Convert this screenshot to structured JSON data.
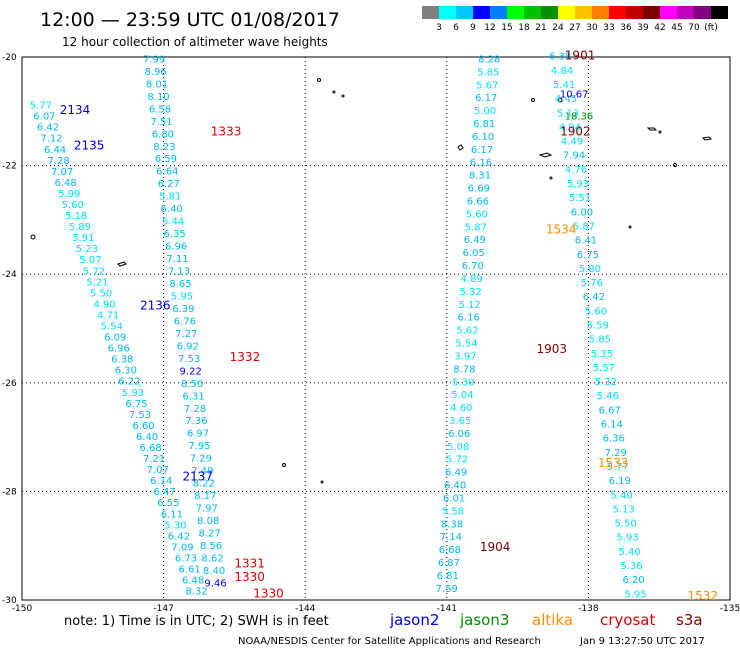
{
  "header": {
    "title": "12:00 — 23:59 UTC 01/08/2017",
    "subtitle": "12 hour collection of altimeter wave heights"
  },
  "colorbar": {
    "colors": [
      "#808080",
      "#00ffff",
      "#00c8ff",
      "#0000ff",
      "#0080ff",
      "#00ff00",
      "#00c000",
      "#009000",
      "#ffff00",
      "#ffc000",
      "#ff8000",
      "#ff0000",
      "#c00000",
      "#800000",
      "#ff00ff",
      "#c000c0",
      "#800080",
      "#000000"
    ],
    "labels": [
      "3",
      "6",
      "9",
      "12",
      "15",
      "18",
      "21",
      "24",
      "27",
      "30",
      "33",
      "36",
      "39",
      "42",
      "45",
      "70",
      "(ft)"
    ]
  },
  "footer": {
    "note": "note: 1) Time is in UTC; 2) SWH is in feet",
    "legend": [
      {
        "name": "jason2",
        "color": "#0000dd"
      },
      {
        "name": "jason3",
        "color": "#009000"
      },
      {
        "name": "altika",
        "color": "#ff8c00"
      },
      {
        "name": "cryosat",
        "color": "#dd0000"
      },
      {
        "name": "s3a",
        "color": "#800000"
      }
    ],
    "credit": "NOAA/NESDIS Center for Satellite Applications and Research",
    "timestamp": "Jan  9 13:27:50 UTC 2017"
  },
  "chart_data": {
    "type": "scatter",
    "title": "12:00 — 23:59 UTC 01/08/2017",
    "subtitle": "12 hour collection of altimeter wave heights",
    "xlim": [
      -150,
      -135
    ],
    "ylim": [
      -30,
      -20
    ],
    "x_ticks": [
      "-150",
      "-147",
      "-144",
      "-141",
      "-138",
      "-135"
    ],
    "y_ticks": [
      "-20",
      "-22",
      "-24",
      "-26",
      "-28",
      "-30"
    ],
    "grid": "dotted",
    "legend": "bottom",
    "pass_labels": [
      {
        "text": "1901",
        "lon": -138.5,
        "lat": -20.05,
        "color": "#800000"
      },
      {
        "text": "1333",
        "lon": -146.0,
        "lat": -21.45,
        "color": "#dd0000"
      },
      {
        "text": "1902",
        "lon": -138.6,
        "lat": -21.45,
        "color": "#800000"
      },
      {
        "text": "2134",
        "lon": -149.2,
        "lat": -21.05,
        "color": "#0000dd"
      },
      {
        "text": "2135",
        "lon": -148.9,
        "lat": -21.7,
        "color": "#0000dd"
      },
      {
        "text": "1534",
        "lon": -138.9,
        "lat": -23.25,
        "color": "#ff8c00"
      },
      {
        "text": "2136",
        "lon": -147.5,
        "lat": -24.65,
        "color": "#0000dd"
      },
      {
        "text": "1903",
        "lon": -139.1,
        "lat": -25.45,
        "color": "#800000"
      },
      {
        "text": "1332",
        "lon": -145.6,
        "lat": -25.6,
        "color": "#dd0000"
      },
      {
        "text": "1533",
        "lon": -137.8,
        "lat": -27.55,
        "color": "#ff8c00"
      },
      {
        "text": "2137",
        "lon": -146.6,
        "lat": -27.8,
        "color": "#0000dd"
      },
      {
        "text": "1904",
        "lon": -140.3,
        "lat": -29.1,
        "color": "#800000"
      },
      {
        "text": "1331",
        "lon": -145.5,
        "lat": -29.4,
        "color": "#dd0000"
      },
      {
        "text": "1330",
        "lon": -145.5,
        "lat": -29.65,
        "color": "#dd0000"
      },
      {
        "text": "1330",
        "lon": -145.1,
        "lat": -29.95,
        "color": "#dd0000"
      },
      {
        "text": "1532",
        "lon": -135.9,
        "lat": -30.0,
        "color": "#ff8c00"
      }
    ],
    "series": [
      {
        "satellite": "jason2",
        "pass": "2134-2137",
        "start": [
          -149.6,
          -20.95
        ],
        "end": [
          -146.3,
          -29.9
        ],
        "values": [
          "5.77",
          "6.07",
          "6.42",
          "7.12",
          "6.44",
          "7.28",
          "7.07",
          "6.48",
          "5.99",
          "5.60",
          "5.18",
          "5.89",
          "5.91",
          "5.23",
          "5.07",
          "5.72",
          "5.21",
          "5.50",
          "4.90",
          "4.71",
          "5.54",
          "6.09",
          "6.96",
          "6.38",
          "6.30",
          "6.22",
          "5.93",
          "6.75",
          "7.53",
          "6.60",
          "6.40",
          "6.68",
          "7.21",
          "7.07",
          "6.14",
          "6.47",
          "6.55",
          "6.11",
          "5.30",
          "6.42",
          "7.09",
          "6.73",
          "6.61",
          "6.48",
          "8.32"
        ]
      },
      {
        "satellite": "cryosat",
        "pass": "1330-1333",
        "start": [
          -147.2,
          -20.1
        ],
        "end": [
          -145.9,
          -29.75
        ],
        "values": [
          "7.99",
          "8.96",
          "8.01",
          "8.10",
          "6.58",
          "7.51",
          "6.80",
          "8.23",
          "6.59",
          "6.64",
          "6.27",
          "5.81",
          "6.40",
          "5.44",
          "6.35",
          "6.96",
          "7.11",
          "7.13",
          "8.65",
          "5.95",
          "6.39",
          "6.76",
          "7.27",
          "6.92",
          "7.53",
          "9.22",
          "8.50",
          "6.31",
          "7.28",
          "7.36",
          "6.97",
          "7.95",
          "7.29",
          "7.49",
          "8.22",
          "8.17",
          "7.97",
          "8.08",
          "8.27",
          "8.56",
          "8.62",
          "8.40",
          "9.46"
        ]
      },
      {
        "satellite": "s3a",
        "pass": "1901-1904",
        "start": [
          -140.1,
          -20.1
        ],
        "end": [
          -141.0,
          -29.85
        ],
        "values": [
          "8.28",
          "5.85",
          "5.67",
          "6.17",
          "5.00",
          "6.81",
          "6.10",
          "6.17",
          "6.16",
          "8.31",
          "6.69",
          "6.66",
          "5.60",
          "5.87",
          "6.49",
          "6.05",
          "6.70",
          "4.89",
          "5.32",
          "5.12",
          "6.16",
          "5.62",
          "5.54",
          "3.97",
          "8.78",
          "5.30",
          "5.04",
          "4.60",
          "3.65",
          "6.06",
          "5.08",
          "5.72",
          "6.49",
          "6.40",
          "6.01",
          "5.58",
          "8.38",
          "7.14",
          "6.68",
          "6.87",
          "6.81",
          "7.59"
        ]
      },
      {
        "satellite": "altika",
        "pass": "1532-1534",
        "start": [
          -138.6,
          -20.05
        ],
        "end": [
          -137.0,
          -29.95
        ],
        "values": [
          "6.38",
          "4.84",
          "5.41",
          "4.45",
          "5.13",
          "4.94",
          "4.49",
          "7.94",
          "4.76",
          "5.93",
          "5.51",
          "6.00",
          "5.87",
          "6.41",
          "6.75",
          "5.80",
          "5.76",
          "6.42",
          "5.60",
          "5.59",
          "5.85",
          "5.35",
          "5.57",
          "5.32",
          "5.46",
          "6.67",
          "6.14",
          "6.36",
          "7.29",
          "5.77",
          "6.19",
          "5.40",
          "5.13",
          "5.50",
          "5.93",
          "5.40",
          "5.36",
          "6.20",
          "5.95"
        ]
      },
      {
        "satellite": "jason3",
        "pass": "",
        "points": [
          {
            "value": "10.67",
            "lon": -138.3,
            "lat": -20.75
          },
          {
            "value": "18.36",
            "lon": -138.2,
            "lat": -21.15
          }
        ]
      }
    ]
  }
}
